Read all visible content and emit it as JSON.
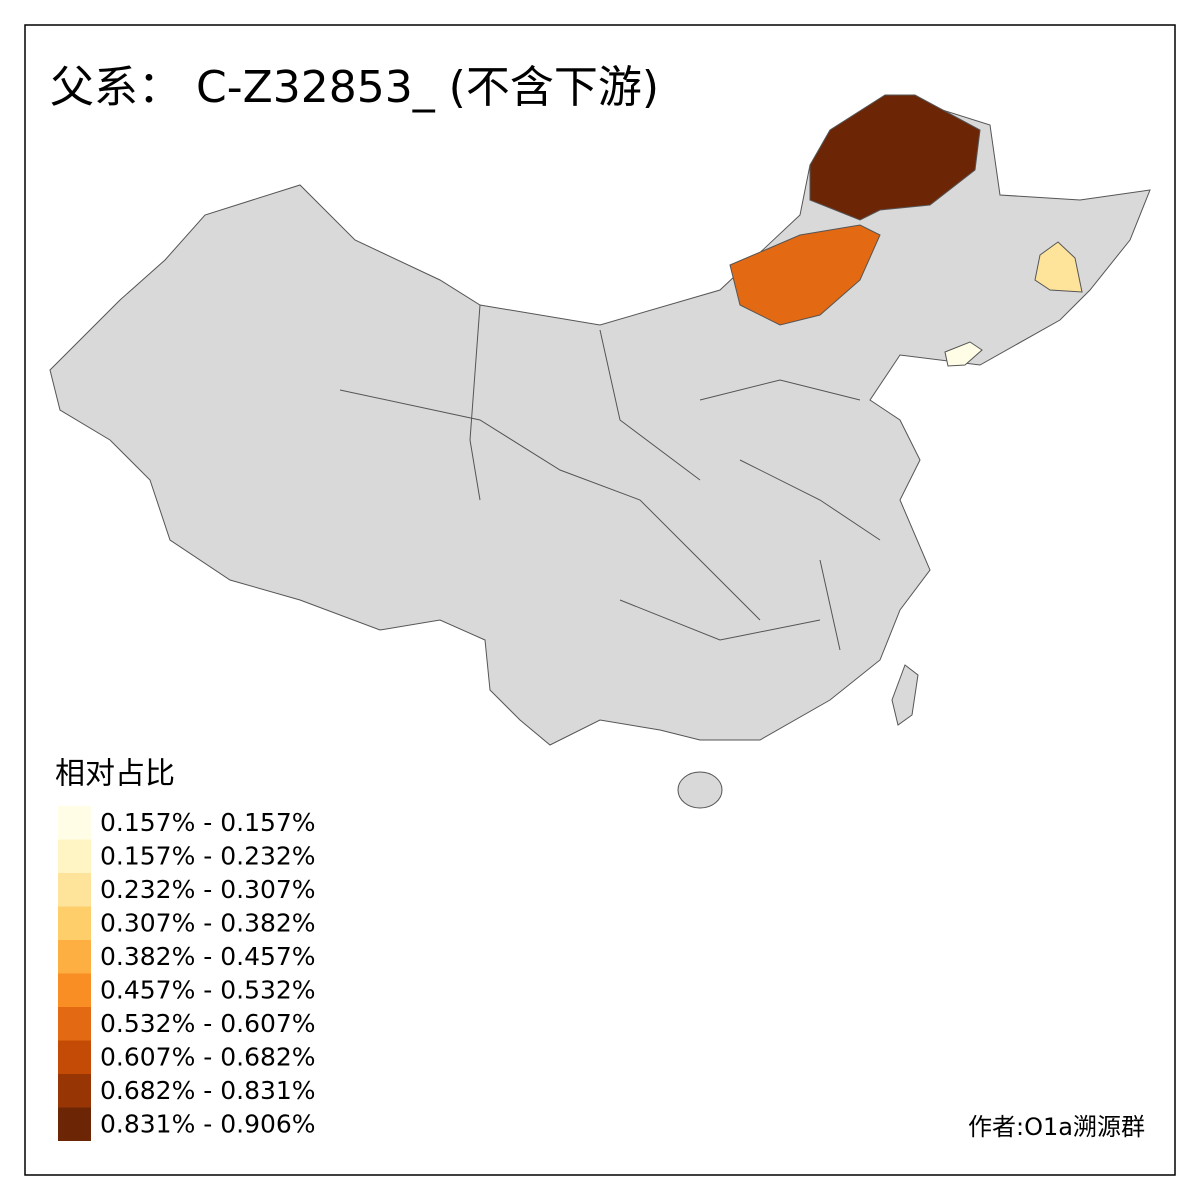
{
  "title": "父系： C-Z32853_ (不含下游)",
  "legend": {
    "title": "相对占比",
    "items": [
      {
        "label": "0.157% - 0.157%",
        "color": "#fffde6"
      },
      {
        "label": "0.157% - 0.232%",
        "color": "#fff5c4"
      },
      {
        "label": "0.232% - 0.307%",
        "color": "#fee39b"
      },
      {
        "label": "0.307% - 0.382%",
        "color": "#fece6a"
      },
      {
        "label": "0.382% - 0.457%",
        "color": "#feaf41"
      },
      {
        "label": "0.457% - 0.532%",
        "color": "#f88e24"
      },
      {
        "label": "0.532% - 0.607%",
        "color": "#e36912"
      },
      {
        "label": "0.607% - 0.682%",
        "color": "#c44b05"
      },
      {
        "label": "0.682% - 0.831%",
        "color": "#983505"
      },
      {
        "label": "0.831% - 0.906%",
        "color": "#6c2606"
      }
    ]
  },
  "credit": "作者:O1a溯源群"
}
